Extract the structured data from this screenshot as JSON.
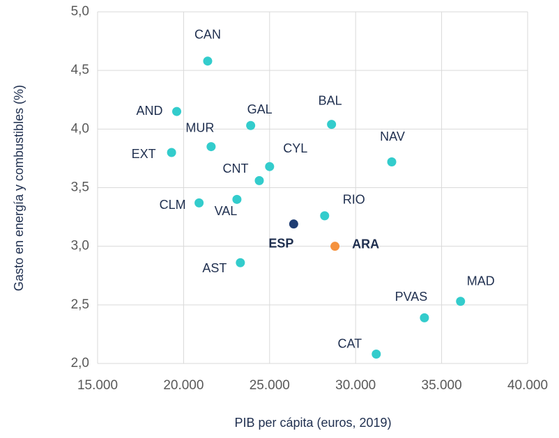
{
  "chart_data": {
    "type": "scatter",
    "x_label": "PIB per cápita (euros,  2019)",
    "y_label": "Gasto en energía  y combustibles (%)",
    "xlim": [
      15000,
      40000
    ],
    "xticks": [
      {
        "value": 15000,
        "label": "15.000"
      },
      {
        "value": 20000,
        "label": "20.000"
      },
      {
        "value": 25000,
        "label": "25.000"
      },
      {
        "value": 30000,
        "label": "30.000"
      },
      {
        "value": 35000,
        "label": "35.000"
      },
      {
        "value": 40000,
        "label": "40.000"
      }
    ],
    "ylim": [
      2.0,
      5.0
    ],
    "yticks": [
      {
        "value": 2.0,
        "label": "2,0"
      },
      {
        "value": 2.5,
        "label": "2,5"
      },
      {
        "value": 3.0,
        "label": "3,0"
      },
      {
        "value": 3.5,
        "label": "3,5"
      },
      {
        "value": 4.0,
        "label": "4,0"
      },
      {
        "value": 4.5,
        "label": "4,5"
      },
      {
        "value": 5.0,
        "label": "5,0"
      }
    ],
    "grid": true,
    "points": [
      {
        "label": "CAN",
        "x": 21400,
        "y": 4.58,
        "color": "#33cccc"
      },
      {
        "label": "AND",
        "x": 19600,
        "y": 4.15,
        "color": "#33cccc"
      },
      {
        "label": "GAL",
        "x": 23900,
        "y": 4.03,
        "color": "#33cccc"
      },
      {
        "label": "BAL",
        "x": 28600,
        "y": 4.04,
        "color": "#33cccc"
      },
      {
        "label": "MUR",
        "x": 21600,
        "y": 3.85,
        "color": "#33cccc"
      },
      {
        "label": "EXT",
        "x": 19300,
        "y": 3.8,
        "color": "#33cccc"
      },
      {
        "label": "NAV",
        "x": 32100,
        "y": 3.72,
        "color": "#33cccc"
      },
      {
        "label": "CYL",
        "x": 25000,
        "y": 3.68,
        "color": "#33cccc"
      },
      {
        "label": "CNT",
        "x": 24400,
        "y": 3.56,
        "color": "#33cccc"
      },
      {
        "label": "VAL",
        "x": 23100,
        "y": 3.4,
        "color": "#33cccc"
      },
      {
        "label": "CLM",
        "x": 20900,
        "y": 3.37,
        "color": "#33cccc"
      },
      {
        "label": "RIO",
        "x": 28200,
        "y": 3.26,
        "color": "#33cccc"
      },
      {
        "label": "ESP",
        "x": 26400,
        "y": 3.19,
        "color": "#1f3d73",
        "bold": true
      },
      {
        "label": "ARA",
        "x": 28800,
        "y": 3.0,
        "color": "#f5923e",
        "bold": true
      },
      {
        "label": "AST",
        "x": 23300,
        "y": 2.86,
        "color": "#33cccc"
      },
      {
        "label": "MAD",
        "x": 36100,
        "y": 2.53,
        "color": "#33cccc"
      },
      {
        "label": "PVAS",
        "x": 34000,
        "y": 2.39,
        "color": "#33cccc"
      },
      {
        "label": "CAT",
        "x": 31200,
        "y": 2.08,
        "color": "#33cccc"
      }
    ]
  }
}
